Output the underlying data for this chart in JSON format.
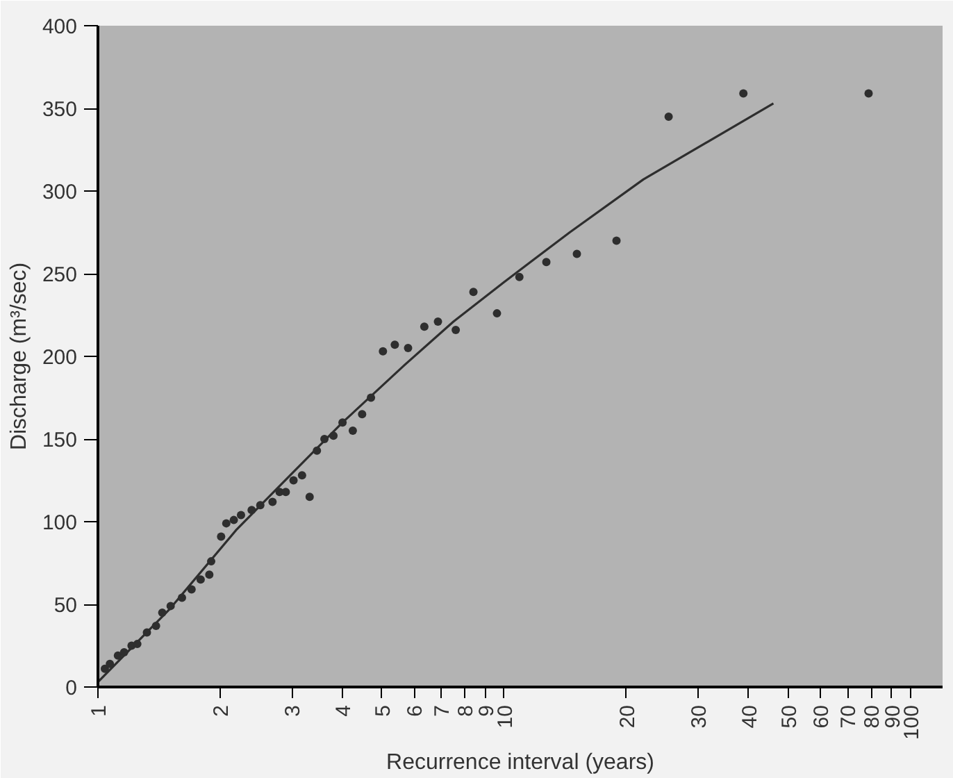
{
  "chart_data": {
    "type": "scatter",
    "xlabel": "Recurrence interval (years)",
    "ylabel": "Discharge (m³/sec)",
    "log": "x",
    "grid": false,
    "marker": "circle",
    "xlim": [
      1,
      120
    ],
    "ylim": [
      0,
      400
    ],
    "xticks": [
      1,
      2,
      3,
      4,
      5,
      6,
      7,
      8,
      9,
      10,
      20,
      30,
      40,
      50,
      60,
      70,
      80,
      90,
      100
    ],
    "yticks": [
      0,
      50,
      100,
      150,
      200,
      250,
      300,
      350,
      400
    ],
    "series": [
      {
        "color": "#2e2e2e",
        "x": [
          1.04,
          1.07,
          1.12,
          1.16,
          1.21,
          1.25,
          1.32,
          1.39,
          1.44,
          1.51,
          1.61,
          1.7,
          1.79,
          1.88,
          1.9,
          2.01,
          2.07,
          2.16,
          2.25,
          2.39,
          2.51,
          2.69,
          2.8,
          2.9,
          3.03,
          3.18,
          3.32,
          3.46,
          3.61,
          3.8,
          4.0,
          4.24,
          4.47,
          4.7,
          5.03,
          5.38,
          5.8,
          6.36,
          6.87,
          7.6,
          8.4,
          9.6,
          10.9,
          12.7,
          15.1,
          18.9,
          25.4,
          38.8,
          78.9
        ],
        "values": [
          11,
          14,
          19,
          21,
          25,
          26,
          33,
          37,
          45,
          49,
          54,
          59,
          65,
          68,
          76,
          91,
          99,
          101,
          104,
          107,
          110,
          112,
          118,
          118,
          125,
          128,
          115,
          143,
          150,
          152,
          160,
          155,
          165,
          175,
          203,
          207,
          205,
          218,
          221,
          216,
          239,
          226,
          248,
          257,
          262,
          270,
          345,
          359,
          359
        ]
      },
      {
        "type": "line",
        "color": "#2e2e2e",
        "line_style": "solid",
        "marker": "none",
        "x": [
          1,
          1.5,
          2.19,
          3,
          4,
          5.7,
          7.5,
          10,
          14.5,
          22,
          46
        ],
        "values": [
          3,
          47,
          95,
          129,
          160,
          195,
          221,
          245,
          275,
          307,
          353
        ]
      }
    ]
  }
}
